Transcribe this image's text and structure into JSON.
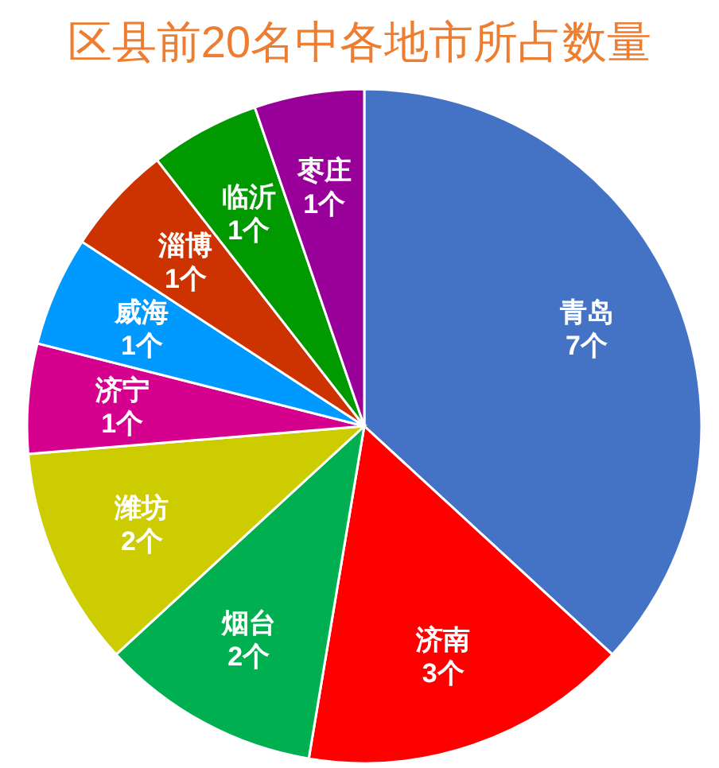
{
  "chart_data": {
    "type": "pie",
    "title": "区县前20名中各地市所占数量",
    "categories": [
      "青岛",
      "济南",
      "烟台",
      "潍坊",
      "济宁",
      "威海",
      "淄博",
      "临沂",
      "枣庄"
    ],
    "values": [
      7,
      3,
      2,
      2,
      1,
      1,
      1,
      1,
      1
    ],
    "value_labels": [
      "7个",
      "3个",
      "2个",
      "2个",
      "1个",
      "1个",
      "1个",
      "1个",
      "1个"
    ],
    "colors": [
      "#4472c4",
      "#ff0000",
      "#00b050",
      "#cccc00",
      "#d6008f",
      "#0099ff",
      "#cc3300",
      "#009900",
      "#990099"
    ]
  }
}
